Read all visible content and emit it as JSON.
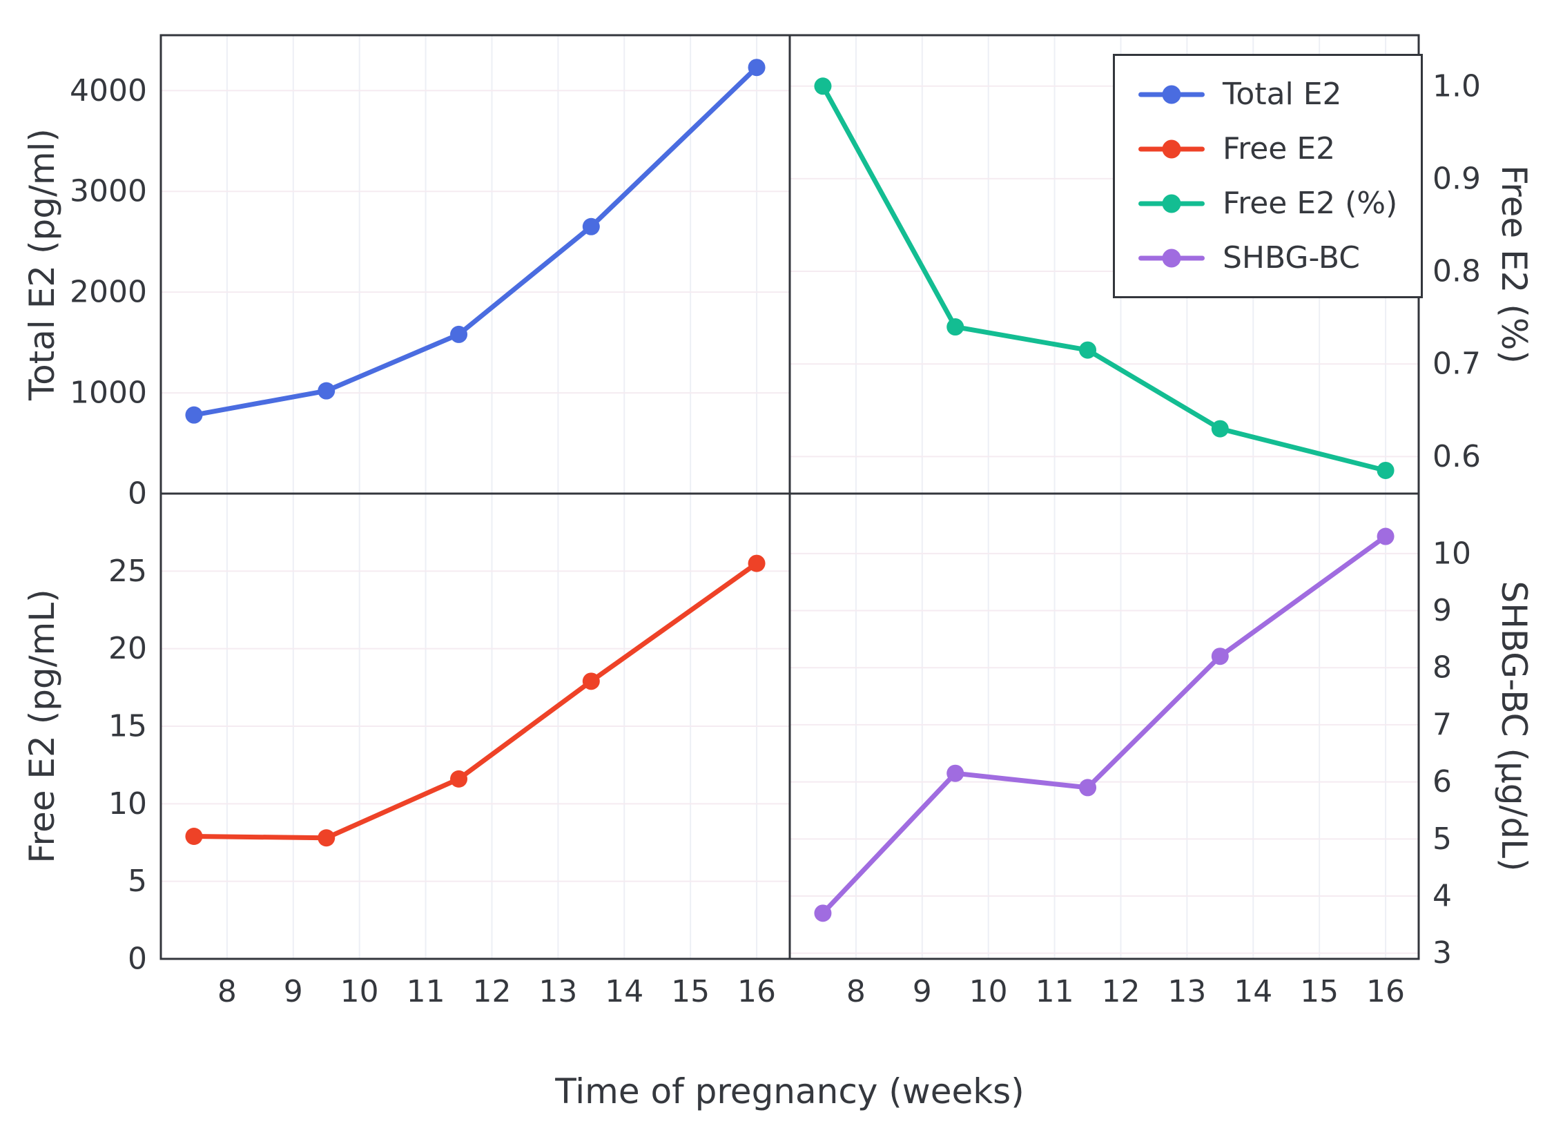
{
  "figure": {
    "xlabel": "Time of pregnancy (weeks)",
    "x_ticks": [
      8,
      9,
      10,
      11,
      12,
      13,
      14,
      15,
      16
    ],
    "x_tick_labels": [
      "8",
      "9",
      "10",
      "11",
      "12",
      "13",
      "14",
      "15",
      "16"
    ],
    "xlim": [
      7.0,
      16.5
    ],
    "background_color": "#ffffff",
    "axis_color": "#33363c",
    "text_color": "#35383e",
    "grid_vertical_color": "#edeff5",
    "grid_horizontal_color": "#f5ebf1"
  },
  "legend": {
    "position": "top-right-panel",
    "entries": [
      {
        "label": "Total E2",
        "color": "#4a6ce0"
      },
      {
        "label": "Free E2",
        "color": "#ee4227"
      },
      {
        "label": "Free E2 (%)",
        "color": "#13bd92"
      },
      {
        "label": "SHBG-BC",
        "color": "#a06ce0"
      }
    ]
  },
  "chart_data": [
    {
      "type": "line",
      "panel": "top-left",
      "name": "Total E2",
      "ylabel": "Total E2 (pg/ml)",
      "axis_side": "left",
      "color": "#4a6ce0",
      "x": [
        7.5,
        9.5,
        11.5,
        13.5,
        16
      ],
      "y": [
        780,
        1020,
        1580,
        2650,
        4230
      ],
      "ylim": [
        0,
        4550
      ],
      "y_ticks": [
        0,
        1000,
        2000,
        3000,
        4000
      ],
      "y_tick_labels": [
        "0",
        "1000",
        "2000",
        "3000",
        "4000"
      ],
      "grid": true
    },
    {
      "type": "line",
      "panel": "top-right",
      "name": "Free E2 (%)",
      "ylabel": "Free E2 (%)",
      "axis_side": "right",
      "color": "#13bd92",
      "x": [
        7.5,
        9.5,
        11.5,
        13.5,
        16
      ],
      "y": [
        1.0,
        0.74,
        0.715,
        0.63,
        0.585
      ],
      "ylim": [
        0.56,
        1.055
      ],
      "y_ticks": [
        0.6,
        0.7,
        0.8,
        0.9,
        1.0
      ],
      "y_tick_labels": [
        "0.6",
        "0.7",
        "0.8",
        "0.9",
        "1.0"
      ],
      "grid": true
    },
    {
      "type": "line",
      "panel": "bottom-left",
      "name": "Free E2",
      "ylabel": "Free E2 (pg/mL)",
      "axis_side": "left",
      "color": "#ee4227",
      "x": [
        7.5,
        9.5,
        11.5,
        13.5,
        16
      ],
      "y": [
        7.9,
        7.8,
        11.6,
        17.9,
        25.5
      ],
      "ylim": [
        0,
        30
      ],
      "y_ticks": [
        0,
        5,
        10,
        15,
        20,
        25
      ],
      "y_tick_labels": [
        "0",
        "5",
        "10",
        "15",
        "20",
        "25"
      ],
      "grid": true
    },
    {
      "type": "line",
      "panel": "bottom-right",
      "name": "SHBG-BC",
      "ylabel": "SHBG-BC (µg/dL)",
      "axis_side": "right",
      "color": "#a06ce0",
      "x": [
        7.5,
        9.5,
        11.5,
        13.5,
        16
      ],
      "y": [
        3.7,
        6.15,
        5.9,
        8.2,
        10.3
      ],
      "ylim": [
        2.9,
        11.05
      ],
      "y_ticks": [
        3,
        4,
        5,
        6,
        7,
        8,
        9,
        10
      ],
      "y_tick_labels": [
        "3",
        "4",
        "5",
        "6",
        "7",
        "8",
        "9",
        "10"
      ],
      "grid": true
    }
  ]
}
